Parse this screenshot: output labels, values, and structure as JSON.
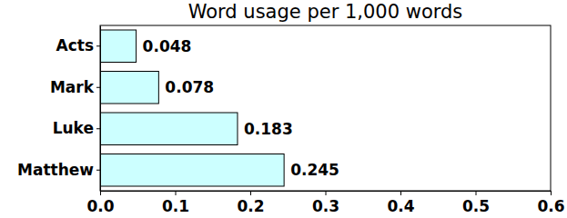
{
  "chart_data": {
    "type": "bar",
    "orientation": "horizontal",
    "title": "Word usage per 1,000 words",
    "categories": [
      "Acts",
      "Mark",
      "Luke",
      "Matthew"
    ],
    "values": [
      0.048,
      0.078,
      0.183,
      0.245
    ],
    "color": "#ccffff",
    "xlim": [
      0,
      0.6
    ],
    "xticks": [
      {
        "value": 0,
        "label": "0.0"
      },
      0.1,
      0.2,
      0.3,
      0.4,
      0.5,
      0.6
    ],
    "data_labels": true,
    "grid": false
  }
}
